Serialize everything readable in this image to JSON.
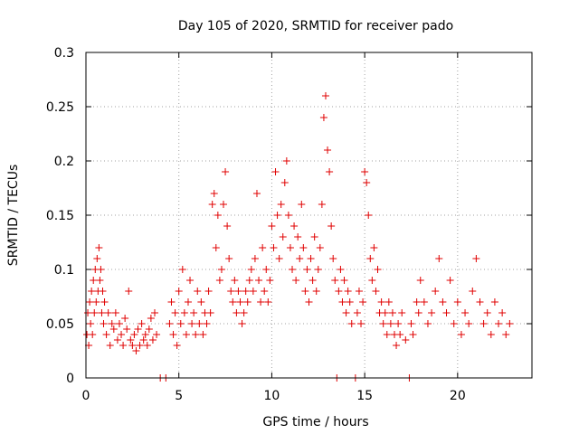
{
  "chart_data": {
    "type": "scatter",
    "title": "Day 105 of 2020, SRMTID for receiver pado",
    "xlabel": "GPS time / hours",
    "ylabel": "SRMTID / TECUs",
    "xlim": [
      0,
      24
    ],
    "ylim": [
      0,
      0.3
    ],
    "xticks": [
      0,
      5,
      10,
      15,
      20
    ],
    "xtick_labels": [
      "0",
      "5",
      "10",
      "15",
      "20"
    ],
    "yticks": [
      0,
      0.05,
      0.1,
      0.15,
      0.2,
      0.25,
      0.3
    ],
    "ytick_labels": [
      "0",
      "0.05",
      "0.1",
      "0.15",
      "0.2",
      "0.25",
      "0.3"
    ],
    "grid": true,
    "series": [
      {
        "name": "SRMTID",
        "color": "#e00000",
        "marker": "plus",
        "points": [
          [
            0.05,
            0.04
          ],
          [
            0.1,
            0.06
          ],
          [
            0.15,
            0.03
          ],
          [
            0.2,
            0.07
          ],
          [
            0.25,
            0.05
          ],
          [
            0.3,
            0.08
          ],
          [
            0.35,
            0.04
          ],
          [
            0.4,
            0.09
          ],
          [
            0.45,
            0.06
          ],
          [
            0.5,
            0.1
          ],
          [
            0.55,
            0.07
          ],
          [
            0.6,
            0.11
          ],
          [
            0.65,
            0.08
          ],
          [
            0.7,
            0.12
          ],
          [
            0.75,
            0.09
          ],
          [
            0.8,
            0.1
          ],
          [
            0.85,
            0.06
          ],
          [
            0.9,
            0.08
          ],
          [
            0.95,
            0.05
          ],
          [
            1.0,
            0.07
          ],
          [
            1.1,
            0.04
          ],
          [
            1.2,
            0.06
          ],
          [
            1.3,
            0.03
          ],
          [
            1.4,
            0.05
          ],
          [
            1.5,
            0.045
          ],
          [
            1.6,
            0.06
          ],
          [
            1.7,
            0.035
          ],
          [
            1.8,
            0.05
          ],
          [
            1.9,
            0.04
          ],
          [
            2.0,
            0.03
          ],
          [
            2.1,
            0.055
          ],
          [
            2.2,
            0.045
          ],
          [
            2.3,
            0.08
          ],
          [
            2.4,
            0.035
          ],
          [
            2.5,
            0.03
          ],
          [
            2.6,
            0.04
          ],
          [
            2.7,
            0.025
          ],
          [
            2.8,
            0.045
          ],
          [
            2.9,
            0.03
          ],
          [
            3.0,
            0.05
          ],
          [
            3.1,
            0.035
          ],
          [
            3.2,
            0.04
          ],
          [
            3.3,
            0.03
          ],
          [
            3.4,
            0.045
          ],
          [
            3.5,
            0.055
          ],
          [
            3.6,
            0.035
          ],
          [
            3.7,
            0.06
          ],
          [
            3.8,
            0.04
          ],
          [
            4.0,
            0.0
          ],
          [
            4.3,
            0.0
          ],
          [
            4.5,
            0.05
          ],
          [
            4.6,
            0.07
          ],
          [
            4.7,
            0.04
          ],
          [
            4.8,
            0.06
          ],
          [
            4.9,
            0.03
          ],
          [
            5.0,
            0.08
          ],
          [
            5.1,
            0.05
          ],
          [
            5.2,
            0.1
          ],
          [
            5.3,
            0.06
          ],
          [
            5.4,
            0.04
          ],
          [
            5.5,
            0.07
          ],
          [
            5.6,
            0.09
          ],
          [
            5.7,
            0.05
          ],
          [
            5.8,
            0.06
          ],
          [
            5.9,
            0.04
          ],
          [
            6.0,
            0.08
          ],
          [
            6.1,
            0.05
          ],
          [
            6.2,
            0.07
          ],
          [
            6.3,
            0.04
          ],
          [
            6.4,
            0.06
          ],
          [
            6.5,
            0.05
          ],
          [
            6.6,
            0.08
          ],
          [
            6.7,
            0.06
          ],
          [
            6.8,
            0.16
          ],
          [
            6.9,
            0.17
          ],
          [
            7.0,
            0.12
          ],
          [
            7.1,
            0.15
          ],
          [
            7.2,
            0.09
          ],
          [
            7.3,
            0.1
          ],
          [
            7.4,
            0.16
          ],
          [
            7.5,
            0.19
          ],
          [
            7.6,
            0.14
          ],
          [
            7.7,
            0.11
          ],
          [
            7.8,
            0.08
          ],
          [
            7.9,
            0.07
          ],
          [
            8.0,
            0.09
          ],
          [
            8.1,
            0.06
          ],
          [
            8.2,
            0.08
          ],
          [
            8.3,
            0.07
          ],
          [
            8.4,
            0.05
          ],
          [
            8.5,
            0.06
          ],
          [
            8.6,
            0.08
          ],
          [
            8.7,
            0.07
          ],
          [
            8.8,
            0.09
          ],
          [
            8.9,
            0.1
          ],
          [
            9.0,
            0.08
          ],
          [
            9.1,
            0.11
          ],
          [
            9.2,
            0.17
          ],
          [
            9.3,
            0.09
          ],
          [
            9.4,
            0.07
          ],
          [
            9.5,
            0.12
          ],
          [
            9.6,
            0.08
          ],
          [
            9.7,
            0.1
          ],
          [
            9.8,
            0.07
          ],
          [
            9.9,
            0.09
          ],
          [
            10.0,
            0.14
          ],
          [
            10.1,
            0.12
          ],
          [
            10.2,
            0.19
          ],
          [
            10.3,
            0.15
          ],
          [
            10.4,
            0.11
          ],
          [
            10.5,
            0.16
          ],
          [
            10.6,
            0.13
          ],
          [
            10.7,
            0.18
          ],
          [
            10.8,
            0.2
          ],
          [
            10.9,
            0.15
          ],
          [
            11.0,
            0.12
          ],
          [
            11.1,
            0.1
          ],
          [
            11.2,
            0.14
          ],
          [
            11.3,
            0.09
          ],
          [
            11.4,
            0.13
          ],
          [
            11.5,
            0.11
          ],
          [
            11.6,
            0.16
          ],
          [
            11.7,
            0.12
          ],
          [
            11.8,
            0.08
          ],
          [
            11.9,
            0.1
          ],
          [
            12.0,
            0.07
          ],
          [
            12.1,
            0.11
          ],
          [
            12.2,
            0.09
          ],
          [
            12.3,
            0.13
          ],
          [
            12.4,
            0.08
          ],
          [
            12.5,
            0.1
          ],
          [
            12.6,
            0.12
          ],
          [
            12.7,
            0.16
          ],
          [
            12.8,
            0.24
          ],
          [
            12.9,
            0.26
          ],
          [
            13.0,
            0.21
          ],
          [
            13.1,
            0.19
          ],
          [
            13.2,
            0.14
          ],
          [
            13.3,
            0.11
          ],
          [
            13.4,
            0.09
          ],
          [
            13.5,
            0.0
          ],
          [
            13.6,
            0.08
          ],
          [
            13.7,
            0.1
          ],
          [
            13.8,
            0.07
          ],
          [
            13.9,
            0.09
          ],
          [
            14.0,
            0.06
          ],
          [
            14.1,
            0.08
          ],
          [
            14.2,
            0.07
          ],
          [
            14.3,
            0.05
          ],
          [
            14.5,
            0.0
          ],
          [
            14.6,
            0.06
          ],
          [
            14.7,
            0.08
          ],
          [
            14.8,
            0.05
          ],
          [
            14.9,
            0.07
          ],
          [
            15.0,
            0.19
          ],
          [
            15.1,
            0.18
          ],
          [
            15.2,
            0.15
          ],
          [
            15.3,
            0.11
          ],
          [
            15.4,
            0.09
          ],
          [
            15.5,
            0.12
          ],
          [
            15.6,
            0.08
          ],
          [
            15.7,
            0.1
          ],
          [
            15.8,
            0.06
          ],
          [
            15.9,
            0.07
          ],
          [
            16.0,
            0.05
          ],
          [
            16.1,
            0.06
          ],
          [
            16.2,
            0.04
          ],
          [
            16.3,
            0.07
          ],
          [
            16.4,
            0.05
          ],
          [
            16.5,
            0.06
          ],
          [
            16.6,
            0.04
          ],
          [
            16.7,
            0.03
          ],
          [
            16.8,
            0.05
          ],
          [
            16.9,
            0.04
          ],
          [
            17.0,
            0.06
          ],
          [
            17.2,
            0.035
          ],
          [
            17.4,
            0.0
          ],
          [
            17.5,
            0.05
          ],
          [
            17.6,
            0.04
          ],
          [
            17.8,
            0.07
          ],
          [
            17.9,
            0.06
          ],
          [
            18.0,
            0.09
          ],
          [
            18.2,
            0.07
          ],
          [
            18.4,
            0.05
          ],
          [
            18.6,
            0.06
          ],
          [
            18.8,
            0.08
          ],
          [
            19.0,
            0.11
          ],
          [
            19.2,
            0.07
          ],
          [
            19.4,
            0.06
          ],
          [
            19.6,
            0.09
          ],
          [
            19.8,
            0.05
          ],
          [
            20.0,
            0.07
          ],
          [
            20.2,
            0.04
          ],
          [
            20.4,
            0.06
          ],
          [
            20.6,
            0.05
          ],
          [
            20.8,
            0.08
          ],
          [
            21.0,
            0.11
          ],
          [
            21.2,
            0.07
          ],
          [
            21.4,
            0.05
          ],
          [
            21.6,
            0.06
          ],
          [
            21.8,
            0.04
          ],
          [
            22.0,
            0.07
          ],
          [
            22.2,
            0.05
          ],
          [
            22.4,
            0.06
          ],
          [
            22.6,
            0.04
          ],
          [
            22.8,
            0.05
          ]
        ]
      }
    ]
  }
}
